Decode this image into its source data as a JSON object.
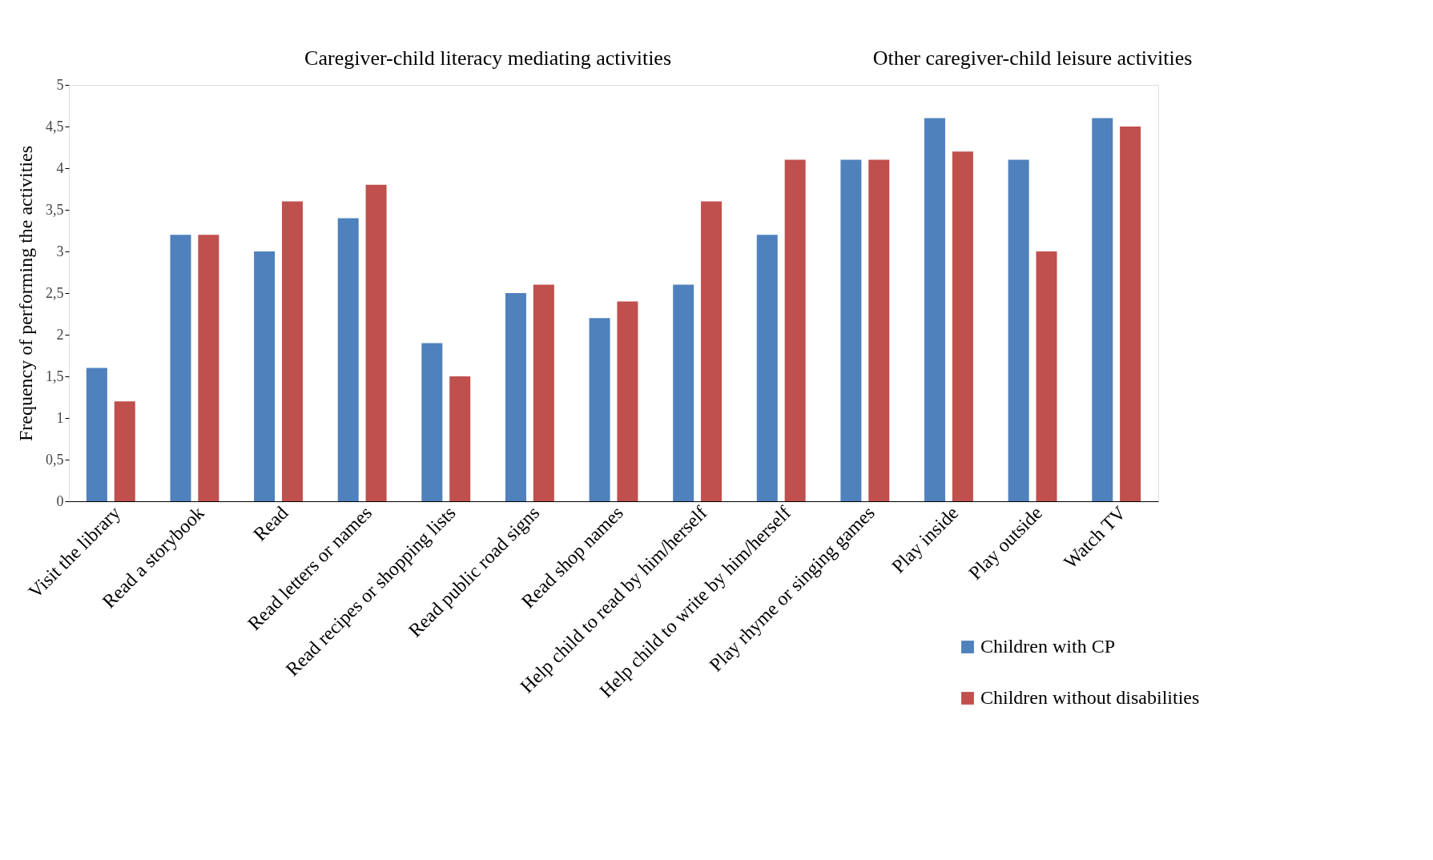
{
  "chart_data": {
    "type": "bar",
    "ylabel": "Frequency of performing the activities",
    "annotations": [
      "Caregiver-child literacy mediating activities",
      "Other caregiver-child leisure activities"
    ],
    "categories": [
      "Visit the library",
      "Read a storybook",
      "Read",
      "Read letters or names",
      "Read recipes or shopping lists",
      "Read public road signs",
      "Read shop names",
      "Help child to read by him/herself",
      "Help child to write by him/herself",
      "Play rhyme or singing games",
      "Play inside",
      "Play outside",
      "Watch TV"
    ],
    "series": [
      {
        "name": "Children with CP",
        "color": "#4f81bd",
        "values": [
          1.6,
          3.2,
          3.0,
          3.4,
          1.9,
          2.5,
          2.2,
          2.6,
          3.2,
          4.1,
          4.6,
          4.1,
          4.6
        ]
      },
      {
        "name": "Children without disabilities",
        "color": "#c0504d",
        "values": [
          1.2,
          3.2,
          3.6,
          3.8,
          1.5,
          2.6,
          2.4,
          3.6,
          4.1,
          4.1,
          4.2,
          3.0,
          4.5
        ]
      }
    ],
    "ylim": [
      0,
      5
    ],
    "yticks": [
      0,
      {
        "value": 0.5,
        "label": "0,5"
      },
      1,
      {
        "value": 1.5,
        "label": "1,5"
      },
      2,
      {
        "value": 2.5,
        "label": "2,5"
      },
      3,
      {
        "value": 3.5,
        "label": "3,5"
      },
      4,
      {
        "value": 4.5,
        "label": "4,5"
      },
      5
    ],
    "grid": false,
    "legend": "bottom right"
  }
}
